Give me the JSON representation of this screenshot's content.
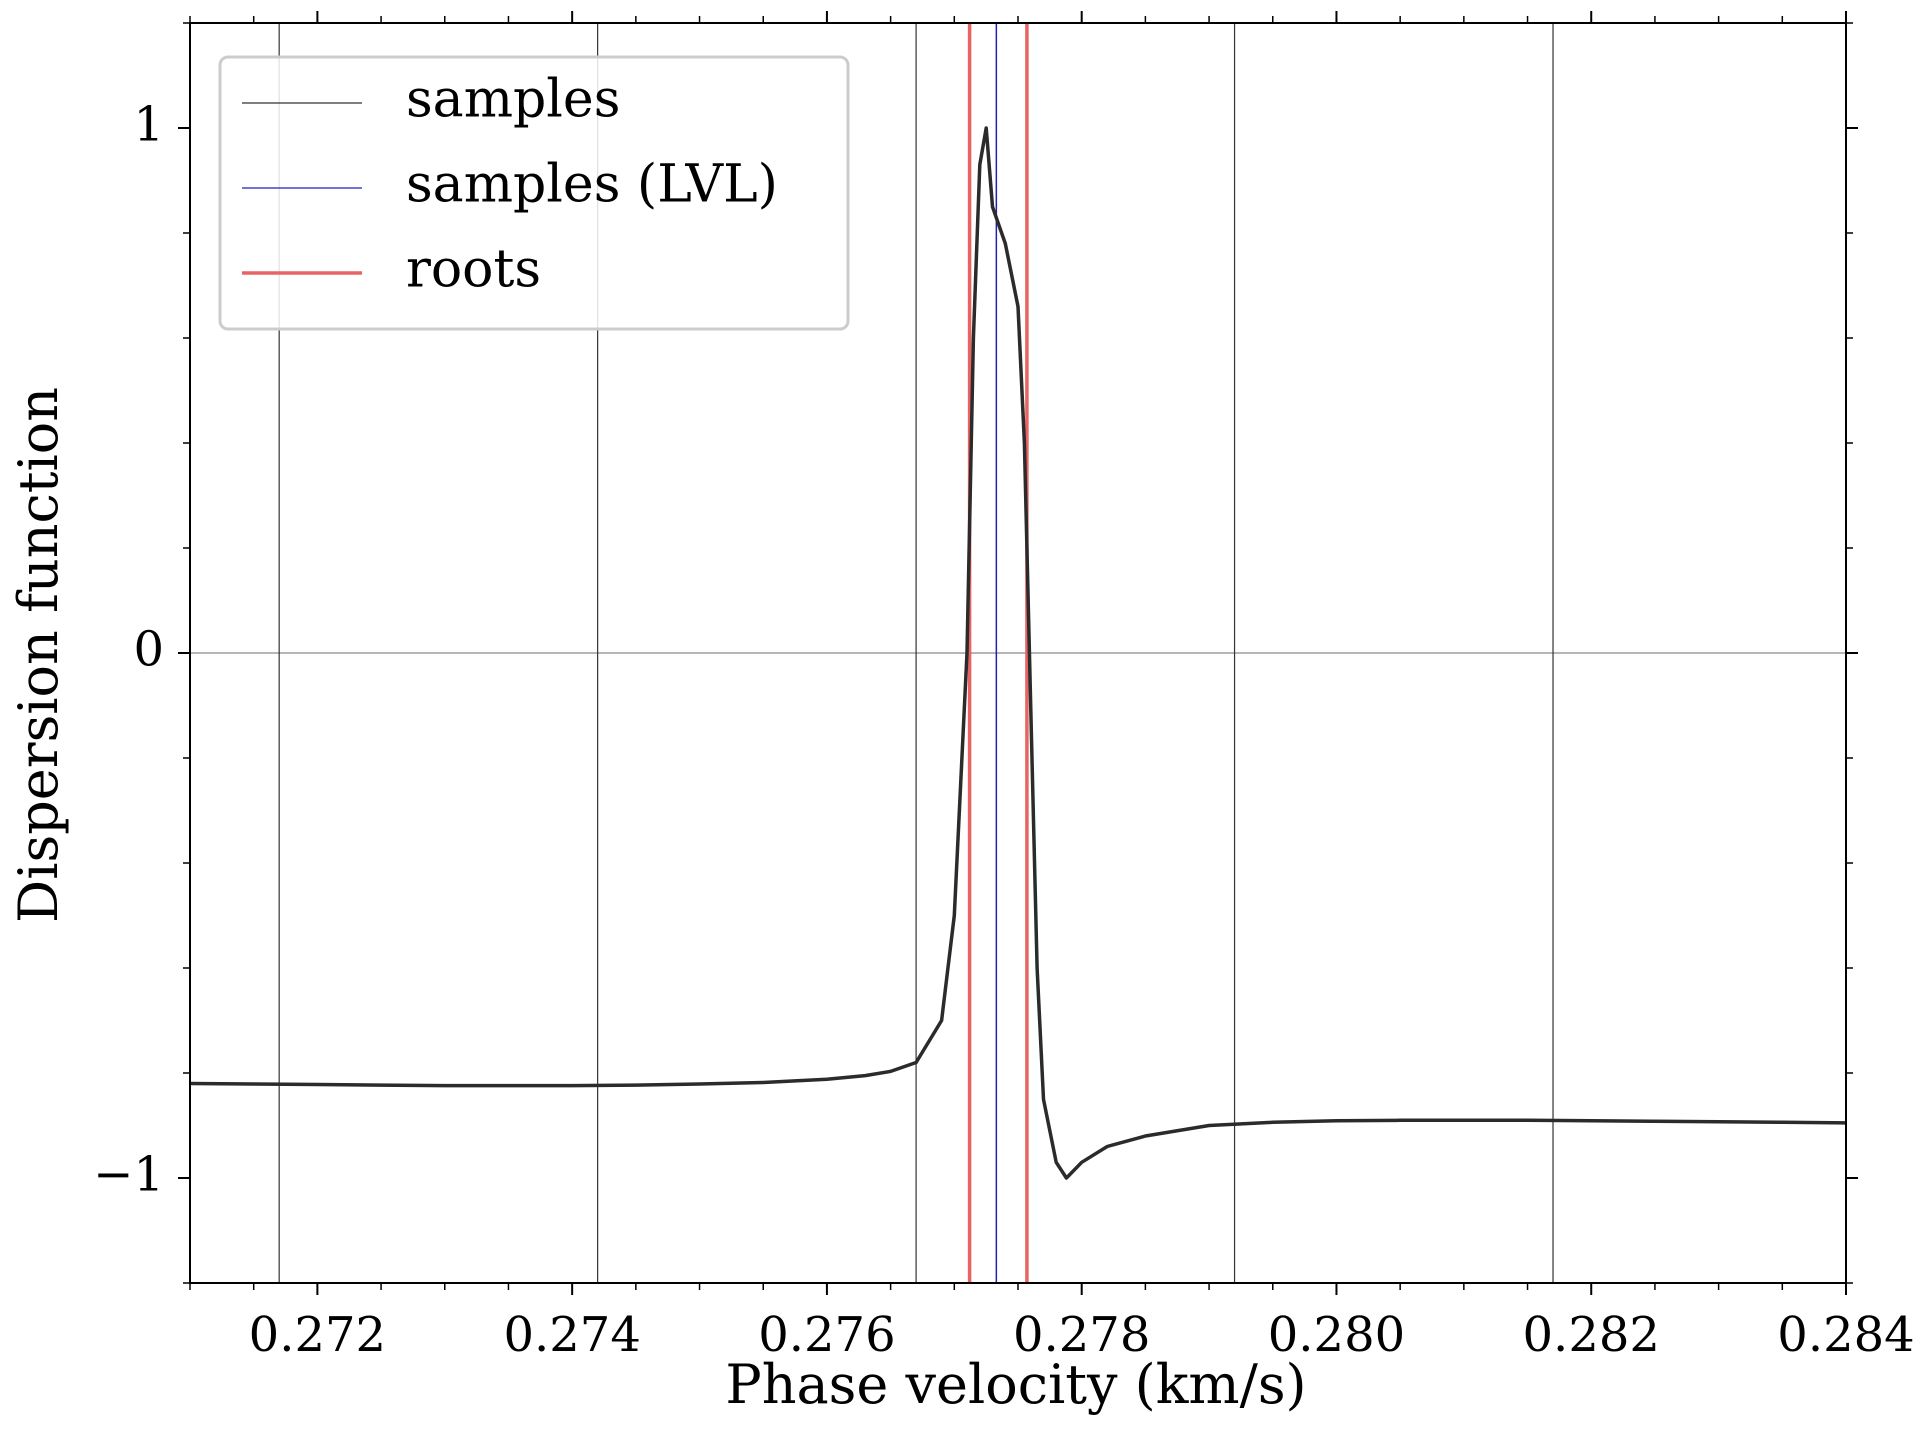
{
  "chart_data": {
    "type": "line",
    "title": "",
    "xlabel": "Phase velocity (km/s)",
    "ylabel": "Dispersion function",
    "xlim": [
      0.271,
      0.284
    ],
    "ylim": [
      -1.2,
      1.2
    ],
    "x_ticks": [
      0.272,
      0.274,
      0.276,
      0.278,
      0.28,
      0.282,
      0.284
    ],
    "x_tick_labels": [
      "0.272",
      "0.274",
      "0.276",
      "0.278",
      "0.280",
      "0.282",
      "0.284"
    ],
    "y_ticks": [
      1,
      0,
      -1
    ],
    "y_tick_labels": [
      "1",
      "0",
      "−1"
    ],
    "grid": "horizontal line at y = 0",
    "legend_position": "top-left",
    "legend": [
      {
        "label": "samples",
        "color": "#333333"
      },
      {
        "label": "samples (LVL)",
        "color": "#1f1fbf"
      },
      {
        "label": "roots",
        "color": "#e86464"
      }
    ],
    "series": [
      {
        "name": "dispersion function",
        "color": "#2b2b2b",
        "x": [
          0.271,
          0.2715,
          0.272,
          0.2725,
          0.273,
          0.2735,
          0.274,
          0.2745,
          0.275,
          0.2755,
          0.276,
          0.2763,
          0.2765,
          0.2767,
          0.2769,
          0.277,
          0.2771,
          0.27715,
          0.2772,
          0.27725,
          0.2773,
          0.2774,
          0.2775,
          0.27755,
          0.2776,
          0.27765,
          0.2777,
          0.2778,
          0.27788,
          0.2779,
          0.278,
          0.2782,
          0.2785,
          0.279,
          0.2795,
          0.28,
          0.2805,
          0.281,
          0.2815,
          0.282,
          0.2825,
          0.283,
          0.2835,
          0.284
        ],
        "y": [
          -0.82,
          -0.821,
          -0.822,
          -0.823,
          -0.824,
          -0.824,
          -0.824,
          -0.823,
          -0.821,
          -0.818,
          -0.812,
          -0.805,
          -0.797,
          -0.78,
          -0.7,
          -0.5,
          0.0,
          0.6,
          0.93,
          1.0,
          0.85,
          0.78,
          0.66,
          0.4,
          -0.1,
          -0.6,
          -0.85,
          -0.97,
          -1.0,
          -0.995,
          -0.97,
          -0.94,
          -0.92,
          -0.9,
          -0.894,
          -0.891,
          -0.89,
          -0.89,
          -0.89,
          -0.891,
          -0.892,
          -0.893,
          -0.894,
          -0.895
        ]
      }
    ],
    "samples_lines_x": [
      0.2717,
      0.2742,
      0.2767,
      0.2792,
      0.2817
    ],
    "samples_lvl_lines_x": [
      0.27733
    ],
    "roots_lines_x": [
      0.27712,
      0.27757
    ]
  }
}
